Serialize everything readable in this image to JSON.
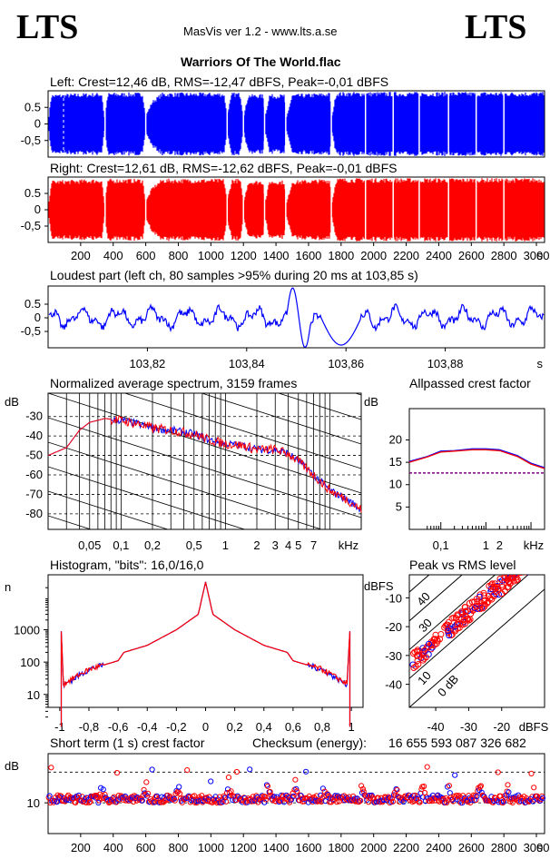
{
  "header": {
    "logo_left": "LTS",
    "logo_right": "LTS",
    "app_title": "MasVis ver 1.2 - www.lts.a.se",
    "file_title": "Warriors Of The World.flac"
  },
  "colors": {
    "left": "#0000ff",
    "right": "#ff0000",
    "ref": "#800080"
  },
  "chart_data": [
    {
      "id": "left-waveform",
      "type": "area",
      "title": "Left: Crest=12,46 dB, RMS=-12,47 dBFS, Peak=-0,01 dBFS",
      "yticks": [
        "0.5",
        "0",
        "-0,5"
      ],
      "ylim": [
        -1,
        1
      ],
      "xlim": [
        0,
        3050
      ],
      "gaps": [
        350,
        600,
        1100,
        1200,
        1330,
        1460,
        1740,
        1950,
        2120,
        2280,
        2460,
        2630,
        2800
      ]
    },
    {
      "id": "right-waveform",
      "type": "area",
      "title": "Right: Crest=12,61 dB, RMS=-12,62 dBFS, Peak=-0,01 dBFS",
      "yticks": [
        "0.5",
        "0",
        "-0,5"
      ],
      "ylim": [
        -1,
        1
      ],
      "xlim": [
        0,
        3050
      ],
      "xticks": [
        "200",
        "400",
        "600",
        "800",
        "1000",
        "1200",
        "1400",
        "1600",
        "1800",
        "2000",
        "2200",
        "2400",
        "2600",
        "2800",
        "3000"
      ],
      "xtick_values": [
        200,
        400,
        600,
        800,
        1000,
        1200,
        1400,
        1600,
        1800,
        2000,
        2200,
        2400,
        2600,
        2800,
        3000
      ],
      "xunit": "s"
    },
    {
      "id": "loudest-part",
      "type": "line",
      "title": "Loudest part (left  ch, 80 samples >95% during 20 ms at 103,85 s)",
      "yticks": [
        "0.5",
        "0",
        "-0,5"
      ],
      "ylim": [
        -1,
        1
      ],
      "xlim": [
        103.8,
        103.9
      ],
      "xticks": [
        "103,82",
        "103,84",
        "103,86",
        "103,88"
      ],
      "xtick_values": [
        103.82,
        103.84,
        103.86,
        103.88
      ],
      "xunit": "s"
    },
    {
      "id": "spectrum",
      "type": "line",
      "title": "Normalized average spectrum, 3159 frames",
      "ylabel": "dB",
      "yticks": [
        "-30",
        "-40",
        "-50",
        "-60",
        "-70",
        "-80"
      ],
      "ytick_values": [
        -30,
        -40,
        -50,
        -60,
        -70,
        -80
      ],
      "ylim": [
        -88,
        -18
      ],
      "xticks": [
        "0,05",
        "0,1",
        "0,2",
        "0,5",
        "1",
        "2",
        "3",
        "4",
        "5",
        "7"
      ],
      "xtick_values": [
        0.05,
        0.1,
        0.2,
        0.5,
        1,
        2,
        3,
        4,
        5,
        7
      ],
      "xunit": "kHz",
      "xscale": "log",
      "x": [
        0.02,
        0.03,
        0.04,
        0.05,
        0.07,
        0.1,
        0.15,
        0.2,
        0.3,
        0.5,
        0.7,
        1,
        1.5,
        2,
        3,
        4,
        5,
        7,
        10,
        15,
        20
      ],
      "series": [
        {
          "values": [
            -50,
            -46,
            -37,
            -33,
            -31,
            -32,
            -34,
            -36,
            -37,
            -39,
            -42,
            -44,
            -45,
            -47,
            -47,
            -49,
            -53,
            -60,
            -68,
            -73,
            -78
          ]
        },
        {
          "values": [
            -50,
            -46,
            -37,
            -33,
            -31,
            -32,
            -34,
            -36,
            -37,
            -39,
            -42,
            -44,
            -45,
            -47,
            -47,
            -49,
            -53,
            -60,
            -68,
            -73,
            -78
          ]
        }
      ]
    },
    {
      "id": "allpassed-crest",
      "type": "line",
      "title": "Allpassed crest factor",
      "ylabel": "dB",
      "yticks": [
        "20",
        "15",
        "10",
        "5"
      ],
      "ytick_values": [
        20,
        15,
        10,
        5
      ],
      "ylim": [
        0,
        27
      ],
      "xticks": [
        "0,1",
        "1",
        "2"
      ],
      "xtick_values": [
        0.1,
        1,
        2
      ],
      "xunit": "kHz",
      "xscale": "log",
      "x": [
        0.02,
        0.05,
        0.1,
        0.2,
        0.5,
        1,
        2,
        5,
        10,
        20
      ],
      "series": [
        {
          "values": [
            15.2,
            16.3,
            17.5,
            17.6,
            18,
            18,
            17.8,
            16.5,
            14.8,
            13.8
          ]
        },
        {
          "values": [
            15,
            16.2,
            17.3,
            17.5,
            17.8,
            17.8,
            17.6,
            16.3,
            14.6,
            13.6
          ]
        }
      ],
      "reference": 12.6
    },
    {
      "id": "histogram",
      "type": "line",
      "title": "Histogram, \"bits\": 16,0/16,0",
      "ylabel": "n",
      "yticks": [
        "1000",
        "100",
        "10"
      ],
      "ytick_values": [
        1000,
        100,
        10
      ],
      "yscale": "log",
      "xticks": [
        "-1",
        "-0,8",
        "-0,6",
        "-0,4",
        "-0,2",
        "0",
        "0,2",
        "0,4",
        "0,6",
        "0,8",
        "1"
      ],
      "xtick_values": [
        -1,
        -0.8,
        -0.6,
        -0.4,
        -0.2,
        0,
        0.2,
        0.4,
        0.6,
        0.8,
        1
      ],
      "x": [
        -0.97,
        -0.8,
        -0.6,
        -0.56,
        -0.4,
        -0.2,
        -0.05,
        0,
        0.05,
        0.2,
        0.4,
        0.56,
        0.6,
        0.8,
        0.97
      ],
      "series": [
        {
          "values": [
            20,
            60,
            110,
            200,
            330,
            1000,
            3000,
            30000,
            3000,
            1000,
            330,
            200,
            110,
            60,
            20
          ]
        },
        {
          "values": [
            22,
            60,
            110,
            200,
            330,
            1000,
            3000,
            30000,
            3000,
            1000,
            330,
            200,
            110,
            60,
            22
          ]
        }
      ]
    },
    {
      "id": "peak-vs-rms",
      "type": "scatter",
      "title": "Peak vs RMS level",
      "ylabel": "dBFS",
      "yticks": [
        "-10",
        "-20",
        "-30",
        "-40"
      ],
      "ytick_values": [
        -10,
        -20,
        -30,
        -40
      ],
      "ylim": [
        -48,
        -2
      ],
      "xticks": [
        "-40",
        "-30",
        "-20",
        "dBFS"
      ],
      "xtick_values": [
        -40,
        -30,
        -20
      ],
      "xlim": [
        -48,
        -7
      ],
      "lines": [
        "0 dB",
        "10",
        "20",
        "30",
        "40"
      ]
    },
    {
      "id": "short-term-crest",
      "type": "scatter",
      "title": "Short term (1 s) crest factor",
      "checksum_label": "Checksum (energy):",
      "checksum_value": "16 655 593 087 326 682",
      "ylabel": "dB",
      "yticks": [
        "10"
      ],
      "ytick_values": [
        10
      ],
      "ylim": [
        0,
        26
      ],
      "reference_lines": [
        10,
        20
      ],
      "xticks": [
        "200",
        "400",
        "600",
        "800",
        "1000",
        "1200",
        "1400",
        "1600",
        "1800",
        "2000",
        "2200",
        "2400",
        "2600",
        "2800",
        "3000"
      ],
      "xtick_values": [
        200,
        400,
        600,
        800,
        1000,
        1200,
        1400,
        1600,
        1800,
        2000,
        2200,
        2400,
        2600,
        2800,
        3000
      ],
      "xunit": "s",
      "xlim": [
        0,
        3050
      ]
    }
  ]
}
